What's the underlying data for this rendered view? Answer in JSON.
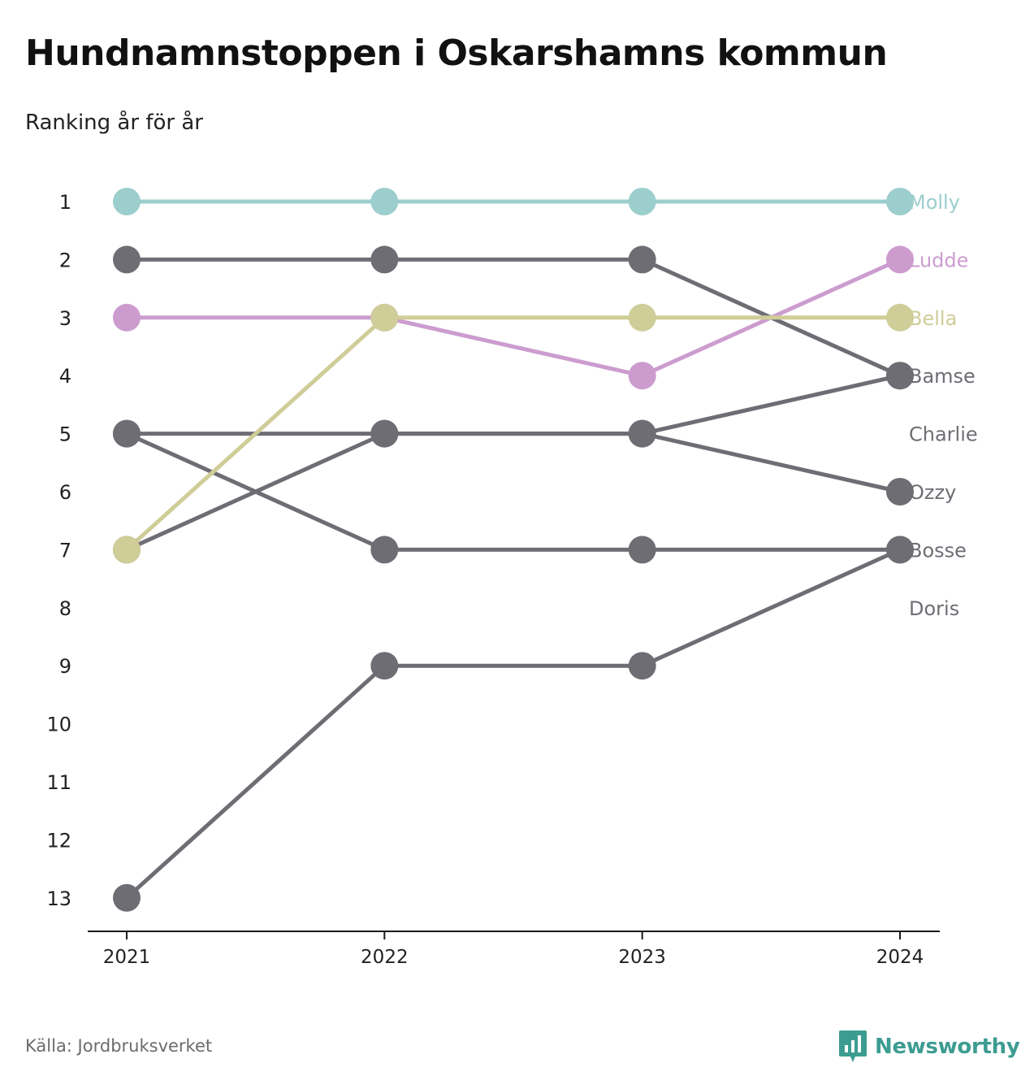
{
  "title": "Hundnamnstoppen i Oskarshamns kommun",
  "subtitle": "Ranking år för år",
  "source": "Källa: Jordbruksverket",
  "brand": {
    "name": "Newsworthy",
    "icon": "newsworthy-logo-icon",
    "color": "#3d9c91"
  },
  "chart_data": {
    "type": "line",
    "x": [
      "2021",
      "2022",
      "2023",
      "2024"
    ],
    "yticks": [
      1,
      2,
      3,
      4,
      5,
      6,
      7,
      8,
      9,
      10,
      11,
      12,
      13
    ],
    "ylim": [
      1,
      13
    ],
    "y_inverted": true,
    "grid": false,
    "series": [
      {
        "name": "Molly",
        "color": "#9ccecd",
        "values": [
          1,
          1,
          1,
          1
        ]
      },
      {
        "name": "Ludde",
        "color": "#cc9ccf",
        "values": [
          3,
          3,
          4,
          2
        ]
      },
      {
        "name": "Bella",
        "color": "#cfcd98",
        "values": [
          7,
          3,
          3,
          3
        ]
      },
      {
        "name": "Bamse",
        "color": "#6e6d74",
        "values": [
          2,
          2,
          2,
          4
        ]
      },
      {
        "name": "Charlie",
        "color": "#6e6d74",
        "values": [
          7,
          5,
          5,
          4
        ]
      },
      {
        "name": "Ozzy",
        "color": "#6e6d74",
        "values": [
          5,
          5,
          5,
          6
        ]
      },
      {
        "name": "Bosse",
        "color": "#6e6d74",
        "values": [
          5,
          7,
          7,
          7
        ]
      },
      {
        "name": "Doris",
        "color": "#6e6d74",
        "values": [
          13,
          9,
          9,
          7
        ]
      }
    ],
    "end_labels": [
      {
        "name": "Molly",
        "rank": 1,
        "color": "#9ccecd"
      },
      {
        "name": "Ludde",
        "rank": 2,
        "color": "#cc9ccf"
      },
      {
        "name": "Bella",
        "rank": 3,
        "color": "#cfcd98"
      },
      {
        "name": "Bamse",
        "rank": 4,
        "color": "#6e6d74"
      },
      {
        "name": "Charlie",
        "rank": 5,
        "color": "#6e6d74"
      },
      {
        "name": "Ozzy",
        "rank": 6,
        "color": "#6e6d74"
      },
      {
        "name": "Bosse",
        "rank": 7,
        "color": "#6e6d74"
      },
      {
        "name": "Doris",
        "rank": 8,
        "color": "#6e6d74"
      }
    ]
  }
}
